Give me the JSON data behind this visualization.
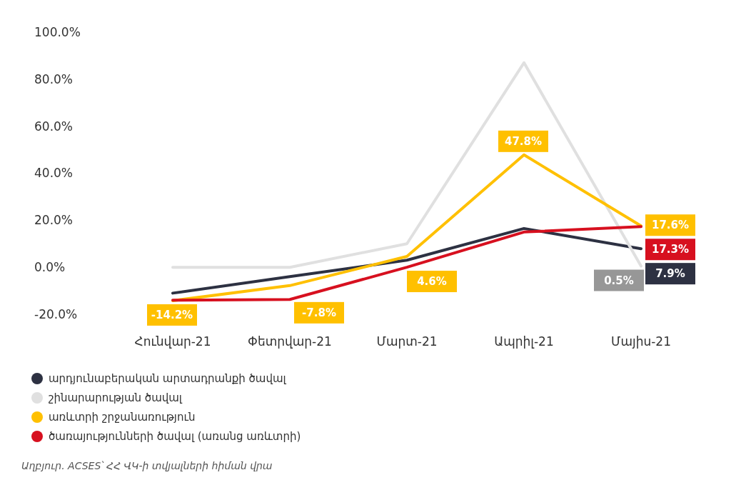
{
  "chart_data": {
    "type": "line",
    "categories": [
      "Հունվար-21",
      "Փետրվար-21",
      "Մարտ-21",
      "Ապրիլ-21",
      "Մայիս-21"
    ],
    "series": [
      {
        "name": "արդյունաբերական արտադրանքի ծավալ",
        "color": "#2d3142",
        "values": [
          -11,
          -4,
          3,
          16.5,
          7.9
        ],
        "value_labels": [
          null,
          null,
          null,
          null,
          "7.9%"
        ]
      },
      {
        "name": "շինարարության ծավալ",
        "color": "#e0e0e0",
        "values": [
          0,
          0,
          10,
          87,
          0.5
        ],
        "value_labels": [
          null,
          null,
          null,
          null,
          "0.5%"
        ]
      },
      {
        "name": "առևտրի շրջանառություն",
        "color": "#ffc000",
        "values": [
          -14.2,
          -7.8,
          4.6,
          47.8,
          17.6
        ],
        "value_labels": [
          "-14.2%",
          "-7.8%",
          "4.6%",
          "47.8%",
          "17.6%"
        ]
      },
      {
        "name": "ծառայությունների ծավալ (առանց առևտրի)",
        "color": "#d7101f",
        "values": [
          -14,
          -13.7,
          0,
          15,
          17.3
        ],
        "value_labels": [
          null,
          null,
          null,
          null,
          "17.3%"
        ]
      }
    ],
    "ylim": [
      -20,
      100
    ],
    "yticks": [
      {
        "value": -20,
        "label": "-20.0%"
      },
      {
        "value": 0,
        "label": "0.0%"
      },
      {
        "value": 20,
        "label": "20.0%"
      },
      {
        "value": 40,
        "label": "40.0%"
      },
      {
        "value": 60,
        "label": "60.0%"
      },
      {
        "value": 80,
        "label": "80.0%"
      },
      {
        "value": 100,
        "label": "100.0%"
      }
    ],
    "grid": false,
    "legend": "bottom left",
    "marker": "none",
    "line_style": "solid",
    "annotations": [
      "Աղբյուր. ACSES՝ ՀՀ ՎԿ-ի տվյալների հիման վրա"
    ]
  }
}
